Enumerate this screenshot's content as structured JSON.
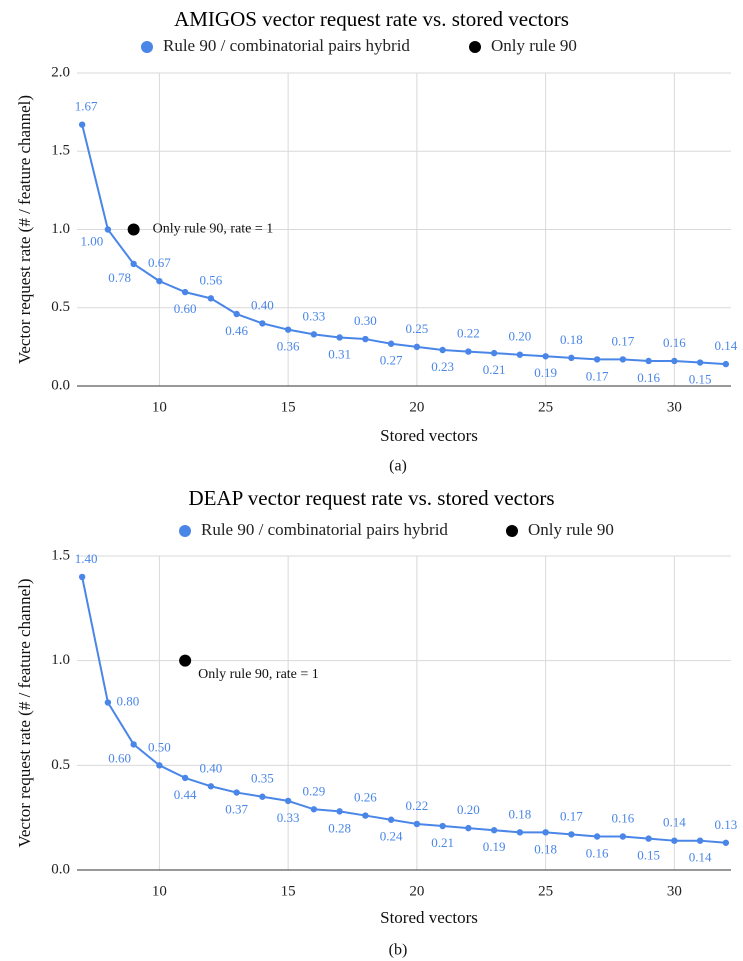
{
  "colors": {
    "series": "#4a86e8",
    "only": "#000000",
    "grid": "#d9d9d9"
  },
  "chart_data": [
    {
      "type": "line",
      "title": "AMIGOS vector request rate vs. stored vectors",
      "xlabel": "Stored vectors",
      "ylabel": "Vector request rate (# / feature channel)",
      "caption": "(a)",
      "xlim": [
        6.8,
        32.2
      ],
      "ylim": [
        0,
        2.0
      ],
      "xticks": [
        10,
        15,
        20,
        25,
        30
      ],
      "yticks": [
        "0.0",
        "0.5",
        "1.0",
        "1.5",
        "2.0"
      ],
      "grid": true,
      "legend_position": "top",
      "series": [
        {
          "name": "Rule 90 / combinatorial pairs hybrid",
          "x": [
            7,
            8,
            9,
            10,
            11,
            12,
            13,
            14,
            15,
            16,
            17,
            18,
            19,
            20,
            21,
            22,
            23,
            24,
            25,
            26,
            27,
            28,
            29,
            30,
            31,
            32
          ],
          "y": [
            1.67,
            1.0,
            0.78,
            0.67,
            0.6,
            0.56,
            0.46,
            0.4,
            0.36,
            0.33,
            0.31,
            0.3,
            0.27,
            0.25,
            0.23,
            0.22,
            0.21,
            0.2,
            0.19,
            0.18,
            0.17,
            0.17,
            0.16,
            0.16,
            0.15,
            0.14
          ],
          "labels": [
            "1.67",
            "1.00",
            "0.78",
            "0.67",
            "0.60",
            "0.56",
            "0.46",
            "0.40",
            "0.36",
            "0.33",
            "0.31",
            "0.30",
            "0.27",
            "0.25",
            "0.23",
            "0.22",
            "0.21",
            "0.20",
            "0.19",
            "0.18",
            "0.17",
            "0.17",
            "0.16",
            "0.16",
            "0.15",
            "0.14"
          ]
        },
        {
          "name": "Only rule 90",
          "x": [
            9
          ],
          "y": [
            1.0
          ],
          "annotation": "Only rule 90, rate = 1"
        }
      ]
    },
    {
      "type": "line",
      "title": "DEAP vector request rate vs. stored vectors",
      "xlabel": "Stored vectors",
      "ylabel": "Vector request rate (# / feature channel)",
      "caption": "(b)",
      "xlim": [
        6.8,
        32.2
      ],
      "ylim": [
        0,
        1.5
      ],
      "xticks": [
        10,
        15,
        20,
        25,
        30
      ],
      "yticks": [
        "0.0",
        "0.5",
        "1.0",
        "1.5"
      ],
      "grid": true,
      "legend_position": "top",
      "series": [
        {
          "name": "Rule 90 / combinatorial pairs hybrid",
          "x": [
            7,
            8,
            9,
            10,
            11,
            12,
            13,
            14,
            15,
            16,
            17,
            18,
            19,
            20,
            21,
            22,
            23,
            24,
            25,
            26,
            27,
            28,
            29,
            30,
            31,
            32
          ],
          "y": [
            1.4,
            0.8,
            0.6,
            0.5,
            0.44,
            0.4,
            0.37,
            0.35,
            0.33,
            0.29,
            0.28,
            0.26,
            0.24,
            0.22,
            0.21,
            0.2,
            0.19,
            0.18,
            0.18,
            0.17,
            0.16,
            0.16,
            0.15,
            0.14,
            0.14,
            0.13
          ],
          "labels": [
            "1.40",
            "0.80",
            "0.60",
            "0.50",
            "0.44",
            "0.40",
            "0.37",
            "0.35",
            "0.33",
            "0.29",
            "0.28",
            "0.26",
            "0.24",
            "0.22",
            "0.21",
            "0.20",
            "0.19",
            "0.18",
            "0.18",
            "0.17",
            "0.16",
            "0.16",
            "0.15",
            "0.14",
            "0.14",
            "0.13"
          ]
        },
        {
          "name": "Only rule 90",
          "x": [
            11
          ],
          "y": [
            1.0
          ],
          "annotation": "Only rule 90, rate = 1"
        }
      ]
    }
  ]
}
